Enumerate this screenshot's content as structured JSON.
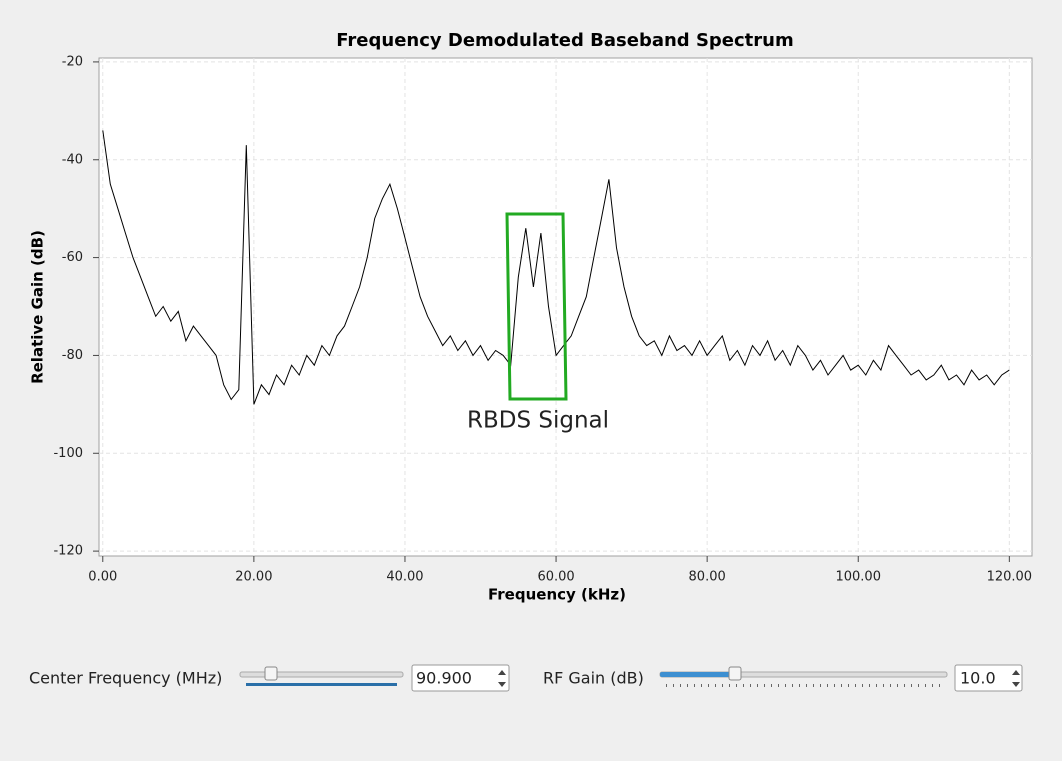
{
  "chart_data": {
    "type": "line",
    "title": "Frequency Demodulated Baseband Spectrum",
    "x_label": "Frequency (kHz)",
    "y_label": "Relative Gain (dB)",
    "annotation": "RBDS Signal",
    "x": [
      0,
      1,
      2,
      3,
      4,
      5,
      6,
      7,
      8,
      9,
      10,
      11,
      12,
      13,
      14,
      15,
      16,
      17,
      18,
      19,
      20,
      21,
      22,
      23,
      24,
      25,
      26,
      27,
      28,
      29,
      30,
      31,
      32,
      33,
      34,
      35,
      36,
      37,
      38,
      39,
      40,
      41,
      42,
      43,
      44,
      45,
      46,
      47,
      48,
      49,
      50,
      51,
      52,
      53,
      54,
      55,
      56,
      57,
      58,
      59,
      60,
      61,
      62,
      63,
      64,
      65,
      66,
      67,
      68,
      69,
      70,
      71,
      72,
      73,
      74,
      75,
      76,
      77,
      78,
      79,
      80,
      81,
      82,
      83,
      84,
      85,
      86,
      87,
      88,
      89,
      90,
      91,
      92,
      93,
      94,
      95,
      96,
      97,
      98,
      99,
      100,
      101,
      102,
      103,
      104,
      105,
      106,
      107,
      108,
      109,
      110,
      111,
      112,
      113,
      114,
      115,
      116,
      117,
      118,
      119,
      120
    ],
    "values": [
      -34,
      -45,
      -50,
      -55,
      -60,
      -64,
      -68,
      -72,
      -70,
      -73,
      -71,
      -77,
      -74,
      -76,
      -78,
      -80,
      -86,
      -89,
      -87,
      -37,
      -90,
      -86,
      -88,
      -84,
      -86,
      -82,
      -84,
      -80,
      -82,
      -78,
      -80,
      -76,
      -74,
      -70,
      -66,
      -60,
      -52,
      -48,
      -45,
      -50,
      -56,
      -62,
      -68,
      -72,
      -75,
      -78,
      -76,
      -79,
      -77,
      -80,
      -78,
      -81,
      -79,
      -80,
      -82,
      -64,
      -54,
      -66,
      -55,
      -70,
      -80,
      -78,
      -76,
      -72,
      -68,
      -60,
      -52,
      -44,
      -58,
      -66,
      -72,
      -76,
      -78,
      -77,
      -80,
      -76,
      -79,
      -78,
      -80,
      -77,
      -80,
      -78,
      -76,
      -81,
      -79,
      -82,
      -78,
      -80,
      -77,
      -81,
      -79,
      -82,
      -78,
      -80,
      -83,
      -81,
      -84,
      -82,
      -80,
      -83,
      -82,
      -84,
      -81,
      -83,
      -78,
      -80,
      -82,
      -84,
      -83,
      -85,
      -84,
      -82,
      -85,
      -84,
      -86,
      -83,
      -85,
      -84,
      -86,
      -84,
      -83
    ],
    "color": "#000000",
    "xlim": [
      -0.5,
      123
    ],
    "ylim": [
      -121,
      -19.2
    ],
    "xticks": [
      {
        "value": 0,
        "label": "0.00"
      },
      {
        "value": 20,
        "label": "20.00"
      },
      {
        "value": 40,
        "label": "40.00"
      },
      {
        "value": 60,
        "label": "60.00"
      },
      {
        "value": 80,
        "label": "80.00"
      },
      {
        "value": 100,
        "label": "100.00"
      },
      {
        "value": 120,
        "label": "120.00"
      }
    ],
    "yticks": [
      -20,
      -40,
      -60,
      -80,
      -100,
      -120
    ],
    "grid": true
  },
  "controls": {
    "center_frequency": {
      "label": "Center Frequency (MHz)",
      "value": "90.900"
    },
    "rf_gain": {
      "label": "RF Gain (dB)",
      "value": "10.0"
    }
  }
}
